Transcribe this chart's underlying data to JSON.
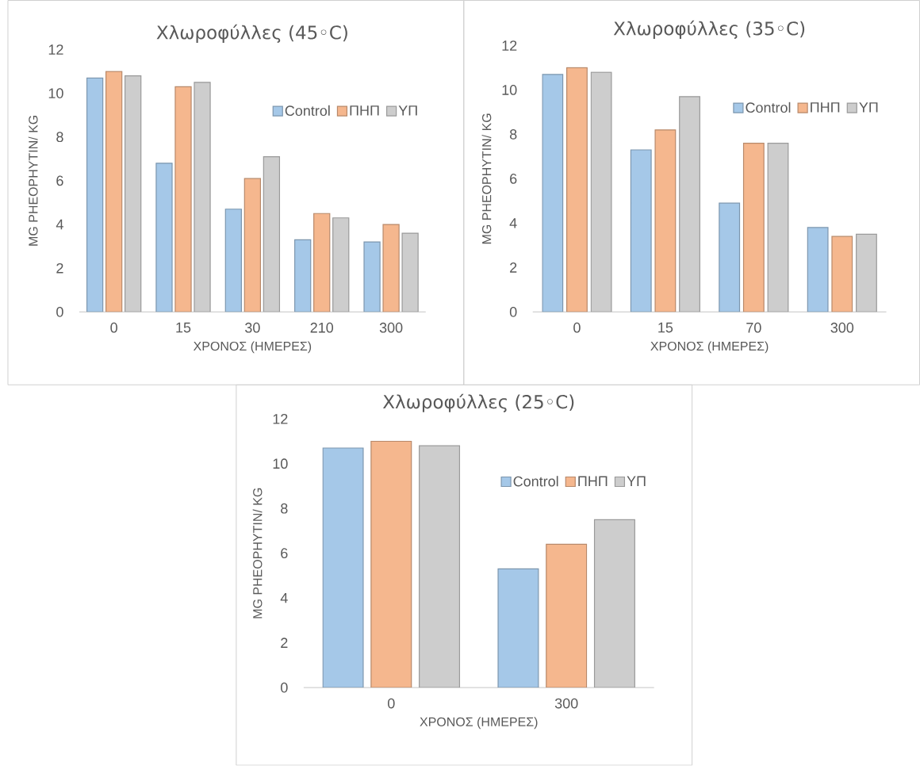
{
  "chart_data": [
    {
      "type": "bar",
      "title": "Χλωροφύλλες (45◦C)",
      "xlabel": "ΧΡΟΝΟΣ (ΗΜΕΡΕΣ)",
      "ylabel": "MG PHEOPHYTIN/ KG",
      "categories": [
        "0",
        "15",
        "30",
        "210",
        "300"
      ],
      "series": [
        {
          "name": "Control",
          "color": "#a5c8e8",
          "values": [
            10.7,
            6.8,
            4.7,
            3.3,
            3.2
          ]
        },
        {
          "name": "ΠΗΠ",
          "color": "#f5b78e",
          "values": [
            11.0,
            10.3,
            6.1,
            4.5,
            4.0
          ]
        },
        {
          "name": "ΥΠ",
          "color": "#cdcdcd",
          "values": [
            10.8,
            10.5,
            7.1,
            4.3,
            3.6
          ]
        }
      ],
      "ylim": [
        0,
        12
      ],
      "yticks": [
        0,
        2,
        4,
        6,
        8,
        10,
        12
      ],
      "grid": false,
      "legend": "top right"
    },
    {
      "type": "bar",
      "title": "Χλωροφύλλες (35◦C)",
      "xlabel": "ΧΡΟΝΟΣ (ΗΜΕΡΕΣ)",
      "ylabel": "MG PHEOPHYTIN/ KG",
      "categories": [
        "0",
        "15",
        "70",
        "300"
      ],
      "series": [
        {
          "name": "Control",
          "color": "#a5c8e8",
          "values": [
            10.7,
            7.3,
            4.9,
            3.8
          ]
        },
        {
          "name": "ΠΗΠ",
          "color": "#f5b78e",
          "values": [
            11.0,
            8.2,
            7.6,
            3.4
          ]
        },
        {
          "name": "ΥΠ",
          "color": "#cdcdcd",
          "values": [
            10.8,
            9.7,
            7.6,
            3.5
          ]
        }
      ],
      "ylim": [
        0,
        12
      ],
      "yticks": [
        0,
        2,
        4,
        6,
        8,
        10,
        12
      ],
      "grid": false,
      "legend": "top right"
    },
    {
      "type": "bar",
      "title": "Χλωροφύλλες (25◦C)",
      "xlabel": "ΧΡΟΝΟΣ (ΗΜΕΡΕΣ)",
      "ylabel": "MG PHEOPHYTIN/ KG",
      "categories": [
        "0",
        "300"
      ],
      "series": [
        {
          "name": "Control",
          "color": "#a5c8e8",
          "values": [
            10.7,
            5.3
          ]
        },
        {
          "name": "ΠΗΠ",
          "color": "#f5b78e",
          "values": [
            11.0,
            6.4
          ]
        },
        {
          "name": "ΥΠ",
          "color": "#cdcdcd",
          "values": [
            10.8,
            7.5
          ]
        }
      ],
      "ylim": [
        0,
        12
      ],
      "yticks": [
        0,
        2,
        4,
        6,
        8,
        10,
        12
      ],
      "grid": false,
      "legend": "top right"
    }
  ]
}
